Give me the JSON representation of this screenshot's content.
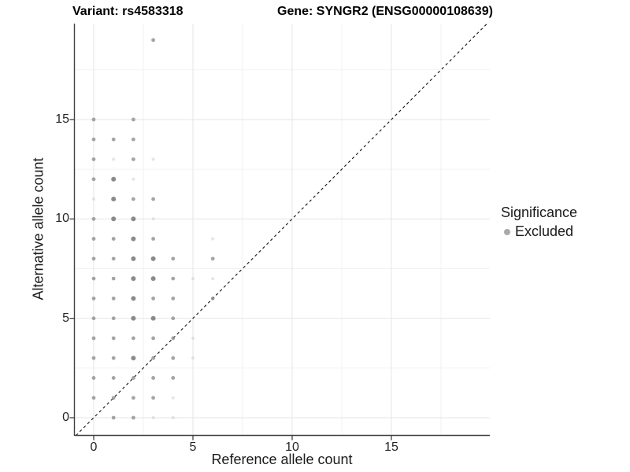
{
  "colors": {
    "background": "#ffffff",
    "point": "#8a8a8a",
    "point_light": "#bdbdbd",
    "point_dark": "#7d7d7d",
    "grid_major": "#e6e6e6",
    "grid_minor": "#f2f2f2",
    "axis_line": "#3f3f3f",
    "tick_mark": "#333333",
    "diagonal_line": "#111111",
    "legend_marker": "#a9a9a9",
    "text": "#1a1a1a"
  },
  "chart_data": {
    "type": "scatter",
    "title_left": "Variant: rs4583318",
    "title_right": "Gene: SYNGR2 (ENSG00000108639)",
    "xlabel": "Reference allele count",
    "ylabel": "Alternative allele count",
    "x_ticks": [
      0,
      5,
      10,
      15
    ],
    "y_ticks": [
      0,
      5,
      10,
      15
    ],
    "x_minor_gridlines": [
      2.5,
      7.5,
      12.5,
      17.5
    ],
    "y_minor_gridlines": [
      2.5,
      7.5,
      12.5,
      17.5
    ],
    "xlim": [
      -0.95,
      19.95
    ],
    "ylim": [
      -0.9,
      19.85
    ],
    "grid": true,
    "identity_line": {
      "slope": 1,
      "intercept": 0,
      "style": "dashed"
    },
    "legend": {
      "title": "Significance",
      "position": "right",
      "entries": [
        {
          "label": "Excluded",
          "marker": "circle"
        }
      ]
    },
    "points": [
      {
        "x": 3,
        "y": 19,
        "shade": "mid"
      },
      {
        "x": 0,
        "y": 15,
        "shade": "mid"
      },
      {
        "x": 2,
        "y": 15,
        "shade": "mid"
      },
      {
        "x": 0,
        "y": 14,
        "shade": "mid"
      },
      {
        "x": 1,
        "y": 14,
        "shade": "mid"
      },
      {
        "x": 2,
        "y": 14,
        "shade": "mid"
      },
      {
        "x": 0,
        "y": 13,
        "shade": "mid"
      },
      {
        "x": 1,
        "y": 13,
        "shade": "light"
      },
      {
        "x": 2,
        "y": 13,
        "shade": "mid"
      },
      {
        "x": 3,
        "y": 13,
        "shade": "light"
      },
      {
        "x": 0,
        "y": 12,
        "shade": "mid"
      },
      {
        "x": 1,
        "y": 12,
        "shade": "dark"
      },
      {
        "x": 2,
        "y": 12,
        "shade": "light"
      },
      {
        "x": 0,
        "y": 11,
        "shade": "light"
      },
      {
        "x": 1,
        "y": 11,
        "shade": "dark"
      },
      {
        "x": 2,
        "y": 11,
        "shade": "mid"
      },
      {
        "x": 3,
        "y": 11,
        "shade": "mid"
      },
      {
        "x": 0,
        "y": 10,
        "shade": "mid"
      },
      {
        "x": 1,
        "y": 10,
        "shade": "dark"
      },
      {
        "x": 2,
        "y": 10,
        "shade": "dark"
      },
      {
        "x": 3,
        "y": 10,
        "shade": "light"
      },
      {
        "x": 0,
        "y": 9,
        "shade": "mid"
      },
      {
        "x": 1,
        "y": 9,
        "shade": "mid"
      },
      {
        "x": 2,
        "y": 9,
        "shade": "dark"
      },
      {
        "x": 3,
        "y": 9,
        "shade": "mid"
      },
      {
        "x": 6,
        "y": 9,
        "shade": "light"
      },
      {
        "x": 0,
        "y": 8,
        "shade": "mid"
      },
      {
        "x": 1,
        "y": 8,
        "shade": "mid"
      },
      {
        "x": 2,
        "y": 8,
        "shade": "dark"
      },
      {
        "x": 3,
        "y": 8,
        "shade": "dark"
      },
      {
        "x": 4,
        "y": 8,
        "shade": "mid"
      },
      {
        "x": 6,
        "y": 8,
        "shade": "mid"
      },
      {
        "x": 0,
        "y": 7,
        "shade": "mid"
      },
      {
        "x": 1,
        "y": 7,
        "shade": "mid"
      },
      {
        "x": 2,
        "y": 7,
        "shade": "dark"
      },
      {
        "x": 3,
        "y": 7,
        "shade": "dark"
      },
      {
        "x": 4,
        "y": 7,
        "shade": "mid"
      },
      {
        "x": 5,
        "y": 7,
        "shade": "light"
      },
      {
        "x": 6,
        "y": 7,
        "shade": "light"
      },
      {
        "x": 0,
        "y": 6,
        "shade": "mid"
      },
      {
        "x": 1,
        "y": 6,
        "shade": "mid"
      },
      {
        "x": 2,
        "y": 6,
        "shade": "dark"
      },
      {
        "x": 3,
        "y": 6,
        "shade": "mid"
      },
      {
        "x": 4,
        "y": 6,
        "shade": "mid"
      },
      {
        "x": 6,
        "y": 6,
        "shade": "mid"
      },
      {
        "x": 0,
        "y": 5,
        "shade": "mid"
      },
      {
        "x": 1,
        "y": 5,
        "shade": "mid"
      },
      {
        "x": 2,
        "y": 5,
        "shade": "dark"
      },
      {
        "x": 3,
        "y": 5,
        "shade": "dark"
      },
      {
        "x": 4,
        "y": 5,
        "shade": "mid"
      },
      {
        "x": 0,
        "y": 4,
        "shade": "mid"
      },
      {
        "x": 1,
        "y": 4,
        "shade": "mid"
      },
      {
        "x": 2,
        "y": 4,
        "shade": "mid"
      },
      {
        "x": 3,
        "y": 4,
        "shade": "mid"
      },
      {
        "x": 4,
        "y": 4,
        "shade": "mid"
      },
      {
        "x": 5,
        "y": 4,
        "shade": "light"
      },
      {
        "x": 0,
        "y": 3,
        "shade": "mid"
      },
      {
        "x": 1,
        "y": 3,
        "shade": "mid"
      },
      {
        "x": 2,
        "y": 3,
        "shade": "dark"
      },
      {
        "x": 3,
        "y": 3,
        "shade": "mid"
      },
      {
        "x": 4,
        "y": 3,
        "shade": "mid"
      },
      {
        "x": 5,
        "y": 3,
        "shade": "light"
      },
      {
        "x": 0,
        "y": 2,
        "shade": "mid"
      },
      {
        "x": 1,
        "y": 2,
        "shade": "mid"
      },
      {
        "x": 2,
        "y": 2,
        "shade": "mid"
      },
      {
        "x": 3,
        "y": 2,
        "shade": "mid"
      },
      {
        "x": 4,
        "y": 2,
        "shade": "mid"
      },
      {
        "x": 0,
        "y": 1,
        "shade": "mid"
      },
      {
        "x": 1,
        "y": 1,
        "shade": "mid"
      },
      {
        "x": 2,
        "y": 1,
        "shade": "mid"
      },
      {
        "x": 3,
        "y": 1,
        "shade": "mid"
      },
      {
        "x": 4,
        "y": 1,
        "shade": "light"
      },
      {
        "x": 1,
        "y": 0,
        "shade": "mid"
      },
      {
        "x": 2,
        "y": 0,
        "shade": "mid"
      },
      {
        "x": 3,
        "y": 0,
        "shade": "light"
      },
      {
        "x": 4,
        "y": 0,
        "shade": "light"
      }
    ]
  }
}
